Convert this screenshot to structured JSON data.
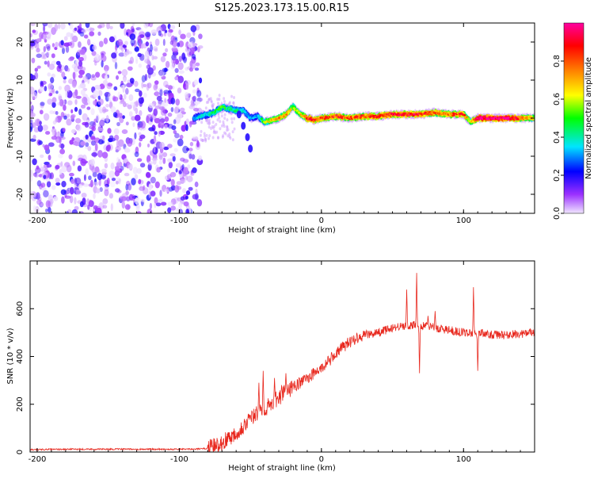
{
  "title": "S125.2023.173.15.00.R15",
  "chart_data": [
    {
      "type": "heatmap",
      "xlabel": "Height of straight line (km)",
      "ylabel": "Frequency (Hz)",
      "xlim": [
        -205,
        150
      ],
      "ylim": [
        -25,
        25
      ],
      "xticks": [
        -200,
        -100,
        0,
        100
      ],
      "yticks": [
        -20,
        -10,
        0,
        10,
        20
      ],
      "colorbar": {
        "label": "Normalized spectral amplitude",
        "range": [
          0.0,
          1.0
        ],
        "ticks": [
          0.0,
          0.2,
          0.4,
          0.6,
          0.8
        ],
        "colors": [
          "#f0e6ff",
          "#9b30ff",
          "#0000ff",
          "#00e5ff",
          "#00ff00",
          "#ffff00",
          "#ff8000",
          "#ff0000",
          "#ff00a0"
        ]
      },
      "noise_region": {
        "x": [
          -205,
          -85
        ],
        "freq": [
          -25,
          25
        ],
        "amplitude": 0.15
      },
      "ridge": {
        "x": [
          -90,
          -85,
          -80,
          -75,
          -70,
          -65,
          -60,
          -55,
          -50,
          -45,
          -40,
          -35,
          -30,
          -25,
          -20,
          -15,
          -10,
          -5,
          0,
          10,
          20,
          30,
          40,
          50,
          60,
          70,
          80,
          90,
          100,
          105,
          110,
          120,
          130,
          140,
          150
        ],
        "freq": [
          0,
          0.5,
          1,
          1.5,
          3,
          2.5,
          2,
          2,
          0,
          0.5,
          -1,
          -0.5,
          0,
          1,
          3,
          1,
          0,
          -0.5,
          0,
          0.5,
          0,
          0.5,
          0.5,
          1,
          1,
          1,
          1.5,
          1,
          1,
          -1,
          0,
          0,
          0,
          0,
          0
        ],
        "amplitude": [
          0.3,
          0.35,
          0.35,
          0.4,
          0.45,
          0.4,
          0.4,
          0.35,
          0.3,
          0.3,
          0.5,
          0.6,
          0.65,
          0.65,
          0.5,
          0.55,
          0.75,
          0.8,
          0.7,
          0.75,
          0.7,
          0.75,
          0.75,
          0.8,
          0.8,
          0.8,
          0.7,
          0.7,
          0.75,
          0.5,
          0.9,
          0.9,
          0.9,
          0.7,
          0.6
        ]
      },
      "spur": {
        "x": [
          -58,
          -55,
          -52,
          -50
        ],
        "freq": [
          1,
          -2,
          -5,
          -8
        ]
      }
    },
    {
      "type": "line",
      "xlabel": "Height of straight line (km)",
      "ylabel": "SNR (10 * v/v)",
      "xlim": [
        -205,
        150
      ],
      "ylim": [
        0,
        800
      ],
      "xticks": [
        -200,
        -100,
        0,
        100
      ],
      "yticks": [
        0,
        200,
        400,
        600
      ],
      "color": "#e8281e",
      "series": [
        {
          "x": [
            -205,
            -180,
            -150,
            -120,
            -100,
            -90,
            -80,
            -75,
            -70,
            -65,
            -60,
            -55,
            -50,
            -45,
            -40,
            -35,
            -30,
            -25,
            -20,
            -15,
            -10,
            -5,
            0,
            5,
            10,
            15,
            20,
            25,
            30,
            40,
            50,
            60,
            70,
            80,
            90,
            100,
            110,
            120,
            130,
            140,
            150
          ],
          "values": [
            10,
            12,
            12,
            12,
            12,
            12,
            15,
            25,
            40,
            60,
            80,
            110,
            140,
            160,
            180,
            200,
            230,
            250,
            270,
            290,
            310,
            330,
            350,
            380,
            410,
            440,
            460,
            480,
            490,
            500,
            520,
            530,
            530,
            520,
            510,
            500,
            500,
            490,
            490,
            495,
            500
          ],
          "spikes": [
            {
              "x": -44,
              "value": 290
            },
            {
              "x": -41,
              "value": 340
            },
            {
              "x": -33,
              "value": 310
            },
            {
              "x": -28,
              "value": 280
            },
            {
              "x": -25,
              "value": 330
            },
            {
              "x": -20,
              "value": 290
            },
            {
              "x": 60,
              "value": 680
            },
            {
              "x": 67,
              "value": 750
            },
            {
              "x": 75,
              "value": 570
            },
            {
              "x": 80,
              "value": 590
            },
            {
              "x": 107,
              "value": 690
            },
            {
              "x": 110,
              "value": 340
            },
            {
              "x": 69,
              "value": 330
            }
          ]
        }
      ]
    }
  ]
}
